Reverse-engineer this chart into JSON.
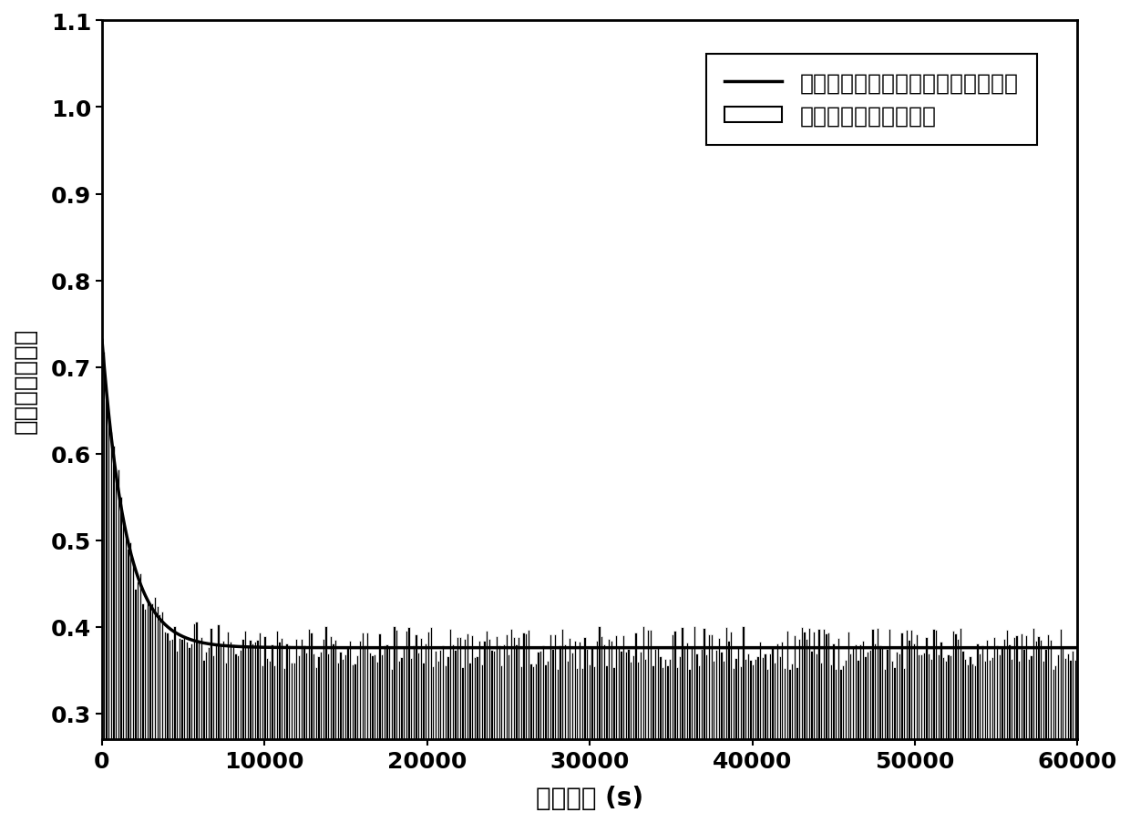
{
  "title": "",
  "xlabel": "松弛时间 (s)",
  "ylabel": "归一化剪切模量",
  "xlim": [
    0,
    60000
  ],
  "ylim": [
    0.27,
    1.1
  ],
  "yticks": [
    0.3,
    0.4,
    0.5,
    0.6,
    0.7,
    0.8,
    0.9,
    1.0,
    1.1
  ],
  "xticks": [
    0,
    10000,
    20000,
    30000,
    40000,
    50000,
    60000
  ],
  "xtick_labels": [
    "0",
    "10000",
    "20000",
    "30000",
    "40000",
    "50000",
    "60000"
  ],
  "legend_line": "普朗尼级数表达的实验数据拟合曲线",
  "legend_bar": "松弛实验数据柱状分布",
  "bar_color": "#000000",
  "bar_edge_color": "#ffffff",
  "line_color": "#000000",
  "background_color": "#ffffff",
  "prony_G_inf": 0.376,
  "prony_G_i": [
    0.355
  ],
  "prony_tau_i": [
    1500.0
  ],
  "bar_bottom": 0.27,
  "font_size": 20,
  "tick_font_size": 18,
  "legend_font_size": 18
}
